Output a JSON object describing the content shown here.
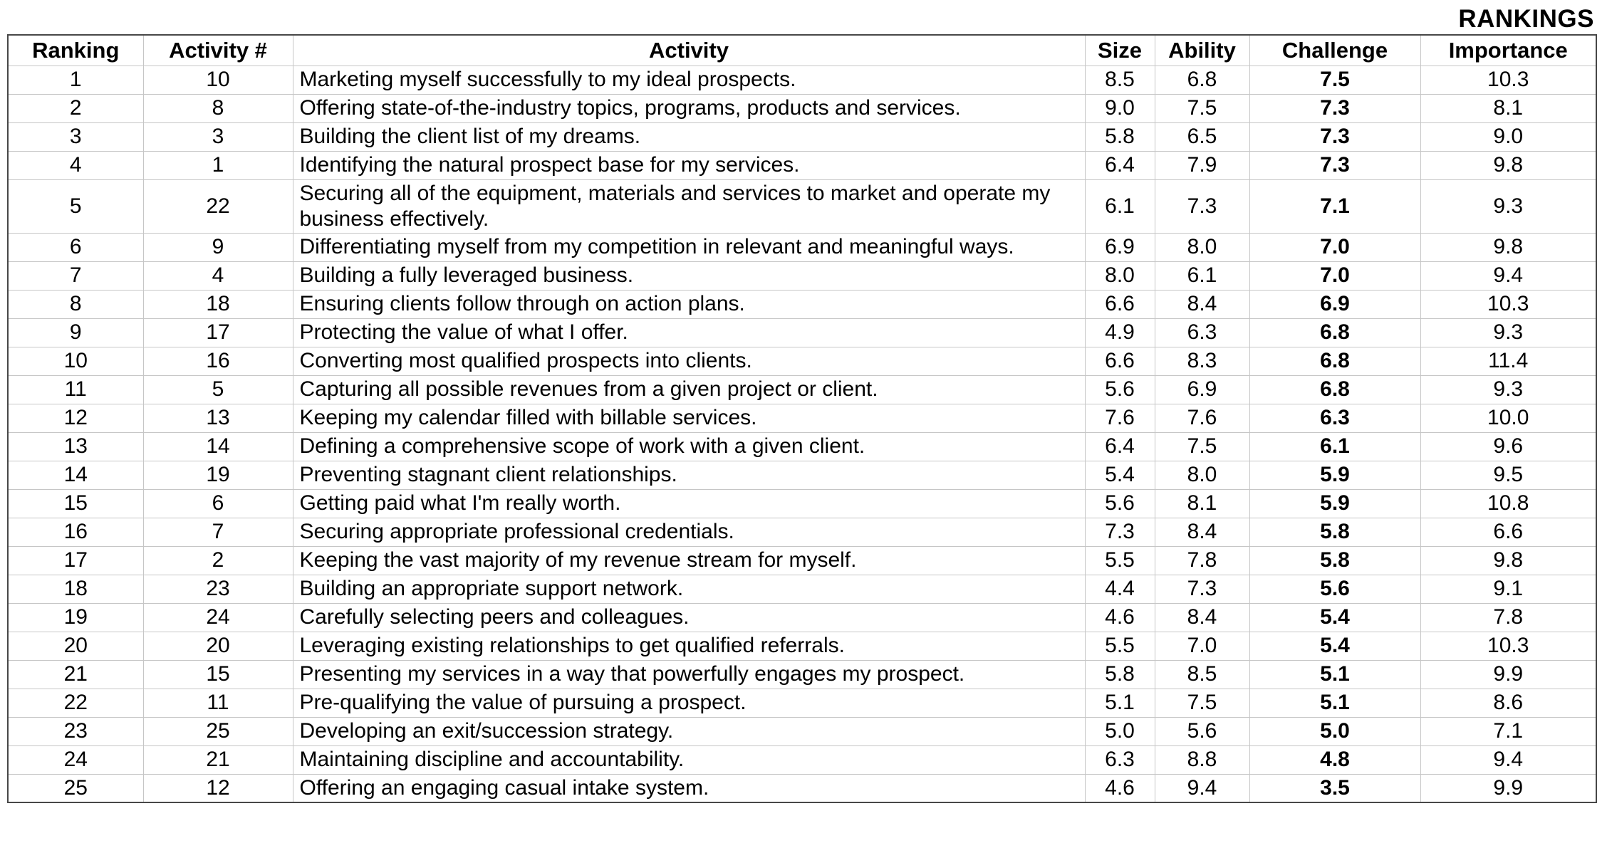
{
  "title": "RANKINGS",
  "table": {
    "columns": [
      {
        "key": "ranking",
        "label": "Ranking"
      },
      {
        "key": "activity_num",
        "label": "Activity #"
      },
      {
        "key": "activity",
        "label": "Activity"
      },
      {
        "key": "size",
        "label": "Size"
      },
      {
        "key": "ability",
        "label": "Ability"
      },
      {
        "key": "challenge",
        "label": "Challenge"
      },
      {
        "key": "importance",
        "label": "Importance"
      }
    ],
    "rows": [
      {
        "ranking": "1",
        "activity_num": "10",
        "activity": "Marketing myself successfully to my ideal prospects.",
        "size": "8.5",
        "ability": "6.8",
        "challenge": "7.5",
        "importance": "10.3"
      },
      {
        "ranking": "2",
        "activity_num": "8",
        "activity": "Offering state-of-the-industry topics, programs, products and services.",
        "size": "9.0",
        "ability": "7.5",
        "challenge": "7.3",
        "importance": "8.1"
      },
      {
        "ranking": "3",
        "activity_num": "3",
        "activity": "Building the client list of my dreams.",
        "size": "5.8",
        "ability": "6.5",
        "challenge": "7.3",
        "importance": "9.0"
      },
      {
        "ranking": "4",
        "activity_num": "1",
        "activity": "Identifying the natural prospect base for my services.",
        "size": "6.4",
        "ability": "7.9",
        "challenge": "7.3",
        "importance": "9.8"
      },
      {
        "ranking": "5",
        "activity_num": "22",
        "activity": "Securing all of the equipment, materials and services to market and operate my business effectively.",
        "size": "6.1",
        "ability": "7.3",
        "challenge": "7.1",
        "importance": "9.3"
      },
      {
        "ranking": "6",
        "activity_num": "9",
        "activity": "Differentiating myself from my competition in relevant and meaningful ways.",
        "size": "6.9",
        "ability": "8.0",
        "challenge": "7.0",
        "importance": "9.8"
      },
      {
        "ranking": "7",
        "activity_num": "4",
        "activity": "Building a fully leveraged business.",
        "size": "8.0",
        "ability": "6.1",
        "challenge": "7.0",
        "importance": "9.4"
      },
      {
        "ranking": "8",
        "activity_num": "18",
        "activity": "Ensuring clients follow through on action plans.",
        "size": "6.6",
        "ability": "8.4",
        "challenge": "6.9",
        "importance": "10.3"
      },
      {
        "ranking": "9",
        "activity_num": "17",
        "activity": "Protecting the value of what I offer.",
        "size": "4.9",
        "ability": "6.3",
        "challenge": "6.8",
        "importance": "9.3"
      },
      {
        "ranking": "10",
        "activity_num": "16",
        "activity": "Converting most qualified prospects into clients.",
        "size": "6.6",
        "ability": "8.3",
        "challenge": "6.8",
        "importance": "11.4"
      },
      {
        "ranking": "11",
        "activity_num": "5",
        "activity": "Capturing all possible revenues from a given project or client.",
        "size": "5.6",
        "ability": "6.9",
        "challenge": "6.8",
        "importance": "9.3"
      },
      {
        "ranking": "12",
        "activity_num": "13",
        "activity": "Keeping my calendar filled with billable services.",
        "size": "7.6",
        "ability": "7.6",
        "challenge": "6.3",
        "importance": "10.0"
      },
      {
        "ranking": "13",
        "activity_num": "14",
        "activity": "Defining a comprehensive scope of work with a given client.",
        "size": "6.4",
        "ability": "7.5",
        "challenge": "6.1",
        "importance": "9.6"
      },
      {
        "ranking": "14",
        "activity_num": "19",
        "activity": "Preventing stagnant client relationships.",
        "size": "5.4",
        "ability": "8.0",
        "challenge": "5.9",
        "importance": "9.5"
      },
      {
        "ranking": "15",
        "activity_num": "6",
        "activity": "Getting paid what I'm really worth.",
        "size": "5.6",
        "ability": "8.1",
        "challenge": "5.9",
        "importance": "10.8"
      },
      {
        "ranking": "16",
        "activity_num": "7",
        "activity": "Securing appropriate professional credentials.",
        "size": "7.3",
        "ability": "8.4",
        "challenge": "5.8",
        "importance": "6.6"
      },
      {
        "ranking": "17",
        "activity_num": "2",
        "activity": "Keeping the vast majority of my revenue stream for myself.",
        "size": "5.5",
        "ability": "7.8",
        "challenge": "5.8",
        "importance": "9.8"
      },
      {
        "ranking": "18",
        "activity_num": "23",
        "activity": "Building an appropriate support network.",
        "size": "4.4",
        "ability": "7.3",
        "challenge": "5.6",
        "importance": "9.1"
      },
      {
        "ranking": "19",
        "activity_num": "24",
        "activity": "Carefully selecting peers and colleagues.",
        "size": "4.6",
        "ability": "8.4",
        "challenge": "5.4",
        "importance": "7.8"
      },
      {
        "ranking": "20",
        "activity_num": "20",
        "activity": "Leveraging existing relationships to get qualified referrals.",
        "size": "5.5",
        "ability": "7.0",
        "challenge": "5.4",
        "importance": "10.3"
      },
      {
        "ranking": "21",
        "activity_num": "15",
        "activity": "Presenting my services in a way that powerfully engages my prospect.",
        "size": "5.8",
        "ability": "8.5",
        "challenge": "5.1",
        "importance": "9.9"
      },
      {
        "ranking": "22",
        "activity_num": "11",
        "activity": "Pre-qualifying the value of pursuing a prospect.",
        "size": "5.1",
        "ability": "7.5",
        "challenge": "5.1",
        "importance": "8.6"
      },
      {
        "ranking": "23",
        "activity_num": "25",
        "activity": "Developing an exit/succession strategy.",
        "size": "5.0",
        "ability": "5.6",
        "challenge": "5.0",
        "importance": "7.1"
      },
      {
        "ranking": "24",
        "activity_num": "21",
        "activity": "Maintaining discipline and accountability.",
        "size": "6.3",
        "ability": "8.8",
        "challenge": "4.8",
        "importance": "9.4"
      },
      {
        "ranking": "25",
        "activity_num": "12",
        "activity": "Offering an engaging casual intake system.",
        "size": "4.6",
        "ability": "9.4",
        "challenge": "3.5",
        "importance": "9.9"
      }
    ]
  }
}
